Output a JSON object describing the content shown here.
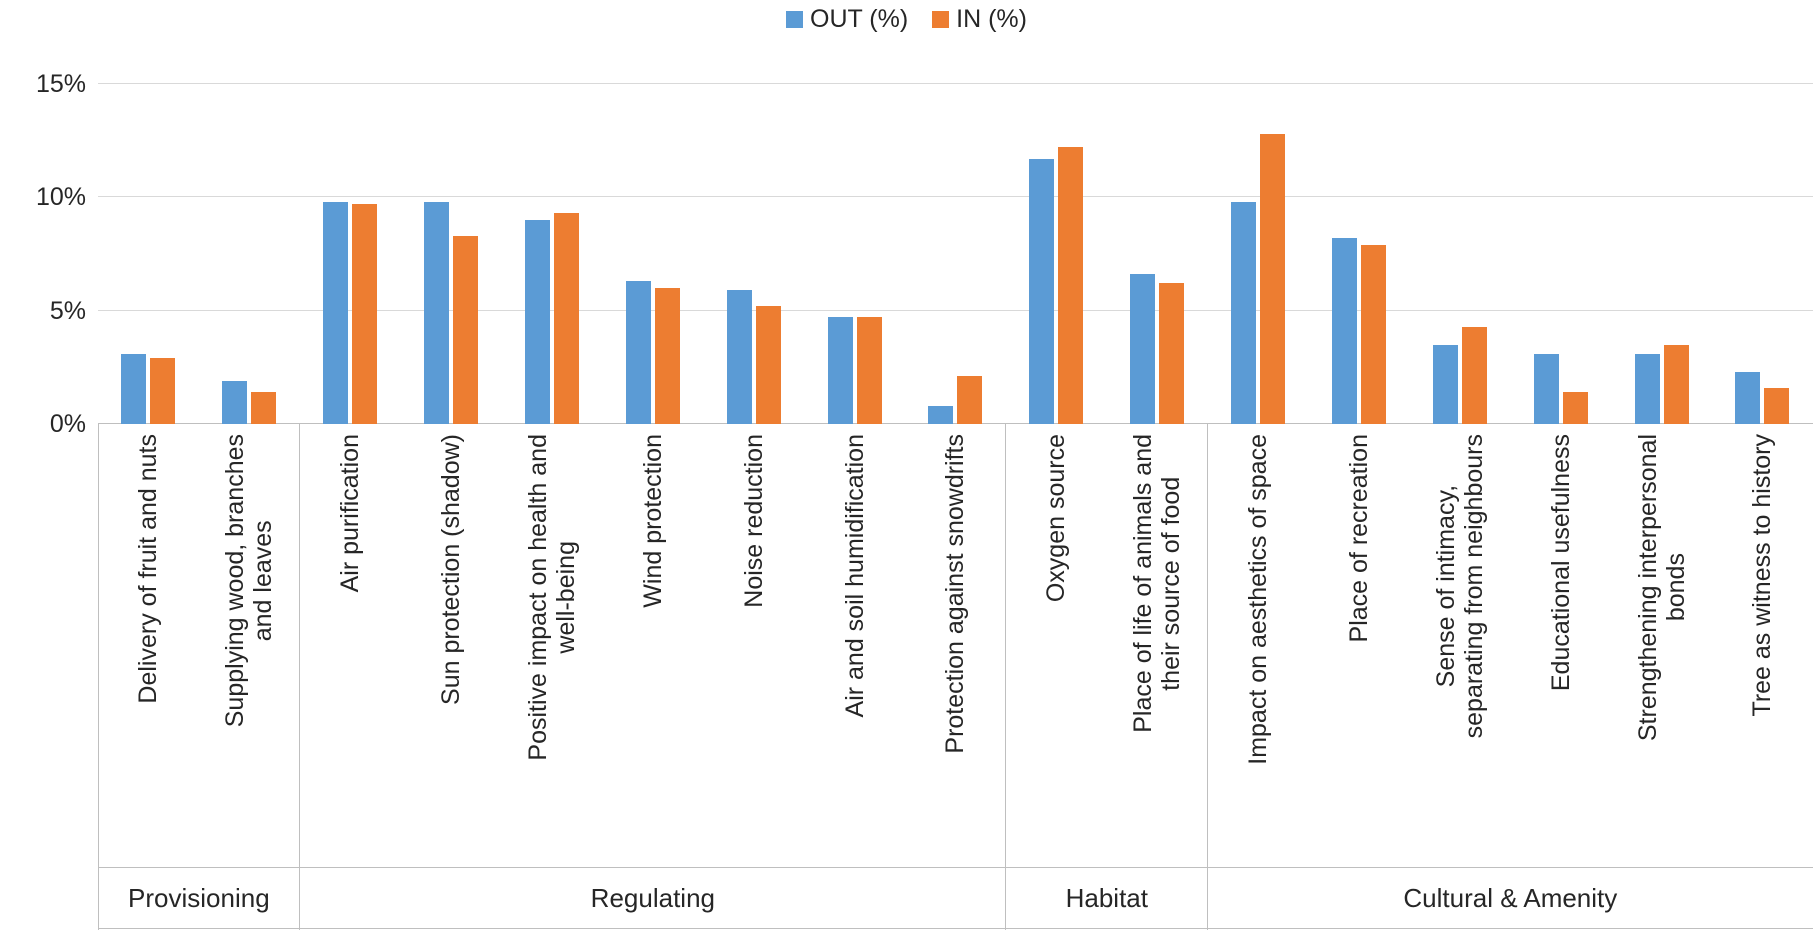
{
  "chart_data": {
    "type": "bar",
    "title": "",
    "xlabel": "",
    "ylabel": "",
    "legend_position": "top",
    "grid": true,
    "ylim": [
      0,
      15
    ],
    "yticks": [
      0,
      5,
      10,
      15
    ],
    "ytick_suffix": "%",
    "categories": [
      "Delivery of fruit and nuts",
      "Supplying wood, branches\nand leaves",
      "Air purification",
      "Sun protection (shadow)",
      "Positive impact on health and\nwell-being",
      "Wind protection",
      "Noise reduction",
      "Air and soil humidification",
      "Protection against snowdrifts",
      "Oxygen source",
      "Place of life of animals and\ntheir source of food",
      "Impact on aesthetics of space",
      "Place of recreation",
      "Sense of intimacy,\nseparating from neighbours",
      "Educational usefulness",
      "Strengthening interpersonal\nbonds",
      "Tree as witness to history"
    ],
    "groups": [
      {
        "label": "Provisioning",
        "span": 2
      },
      {
        "label": "Regulating",
        "span": 7
      },
      {
        "label": "Habitat",
        "span": 2
      },
      {
        "label": "Cultural & Amenity",
        "span": 6
      }
    ],
    "series": [
      {
        "name": "OUT (%)",
        "key": "out",
        "color": "#5B9BD5",
        "values": [
          3.1,
          1.9,
          9.8,
          9.8,
          9.0,
          6.3,
          5.9,
          4.7,
          0.8,
          11.7,
          6.6,
          9.8,
          8.2,
          3.5,
          3.1,
          3.1,
          2.3
        ]
      },
      {
        "name": "IN (%)",
        "key": "in",
        "color": "#ED7D31",
        "values": [
          2.9,
          1.4,
          9.7,
          8.3,
          9.3,
          6.0,
          5.2,
          4.7,
          2.1,
          12.2,
          6.2,
          12.8,
          7.9,
          4.3,
          1.4,
          3.5,
          1.6
        ]
      }
    ],
    "colors": {
      "gridline": "#D9D9D9",
      "axis": "#BFBFBF",
      "text": "#262626"
    }
  }
}
